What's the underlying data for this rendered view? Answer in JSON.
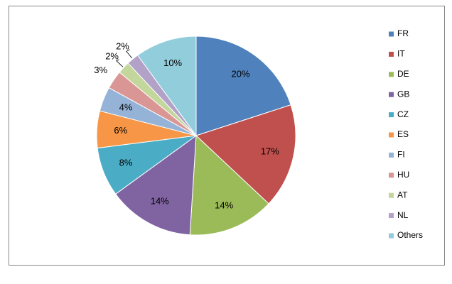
{
  "chart_data": {
    "type": "pie",
    "categories": [
      "FR",
      "IT",
      "DE",
      "GB",
      "CZ",
      "ES",
      "FI",
      "HU",
      "AT",
      "NL",
      "Others"
    ],
    "values": [
      20,
      17,
      14,
      14,
      8,
      6,
      4,
      3,
      2,
      2,
      10
    ],
    "value_labels": [
      "20%",
      "17%",
      "14%",
      "14%",
      "8%",
      "6%",
      "4%",
      "3%",
      "2%",
      "2%",
      "10%"
    ],
    "colors": [
      "#4f81bd",
      "#c0504d",
      "#9bbb59",
      "#8064a2",
      "#4bacc6",
      "#f79646",
      "#95b3d7",
      "#d99694",
      "#c3d69b",
      "#b2a2c7",
      "#92cddc"
    ],
    "legend": "right"
  }
}
